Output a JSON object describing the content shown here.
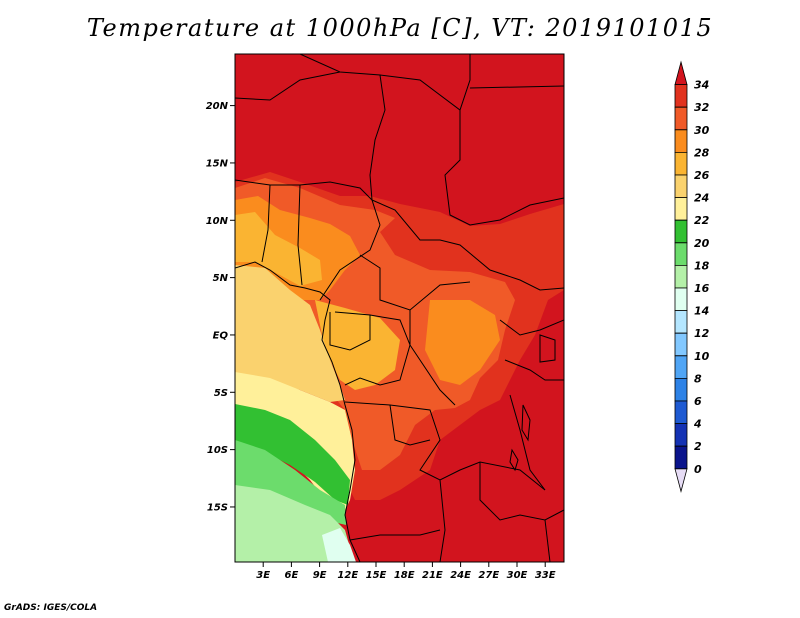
{
  "title": "Temperature at 1000hPa [C], VT: 2019101015",
  "credit": "GrADS: IGES/COLA",
  "map": {
    "lat_labels": [
      "20N",
      "15N",
      "10N",
      "5N",
      "EQ",
      "5S",
      "10S",
      "15S"
    ],
    "lon_labels": [
      "3E",
      "6E",
      "9E",
      "12E",
      "15E",
      "18E",
      "21E",
      "24E",
      "27E",
      "30E",
      "33E"
    ],
    "lat_values": [
      20,
      15,
      10,
      5,
      0,
      -5,
      -10,
      -15
    ],
    "lon_values": [
      3,
      6,
      9,
      12,
      15,
      18,
      21,
      24,
      27,
      30,
      33
    ],
    "lon_range": [
      0,
      35
    ],
    "lat_range": [
      -19.8,
      24.5
    ]
  },
  "colorbar": {
    "labels": [
      "34",
      "32",
      "30",
      "28",
      "26",
      "24",
      "22",
      "20",
      "18",
      "16",
      "14",
      "12",
      "10",
      "8",
      "6",
      "4",
      "2",
      "0"
    ],
    "colors": [
      "#d2141e",
      "#e1321e",
      "#f05a28",
      "#fa8c1e",
      "#fab432",
      "#fad26e",
      "#fff09a",
      "#32c032",
      "#6cdc6c",
      "#b4f0a8",
      "#e0fff0",
      "#b4e6ff",
      "#82c8ff",
      "#50a5f5",
      "#2d82e6",
      "#1e5ad2",
      "#1432b4",
      "#0a148c",
      "#e6dcf5"
    ]
  }
}
